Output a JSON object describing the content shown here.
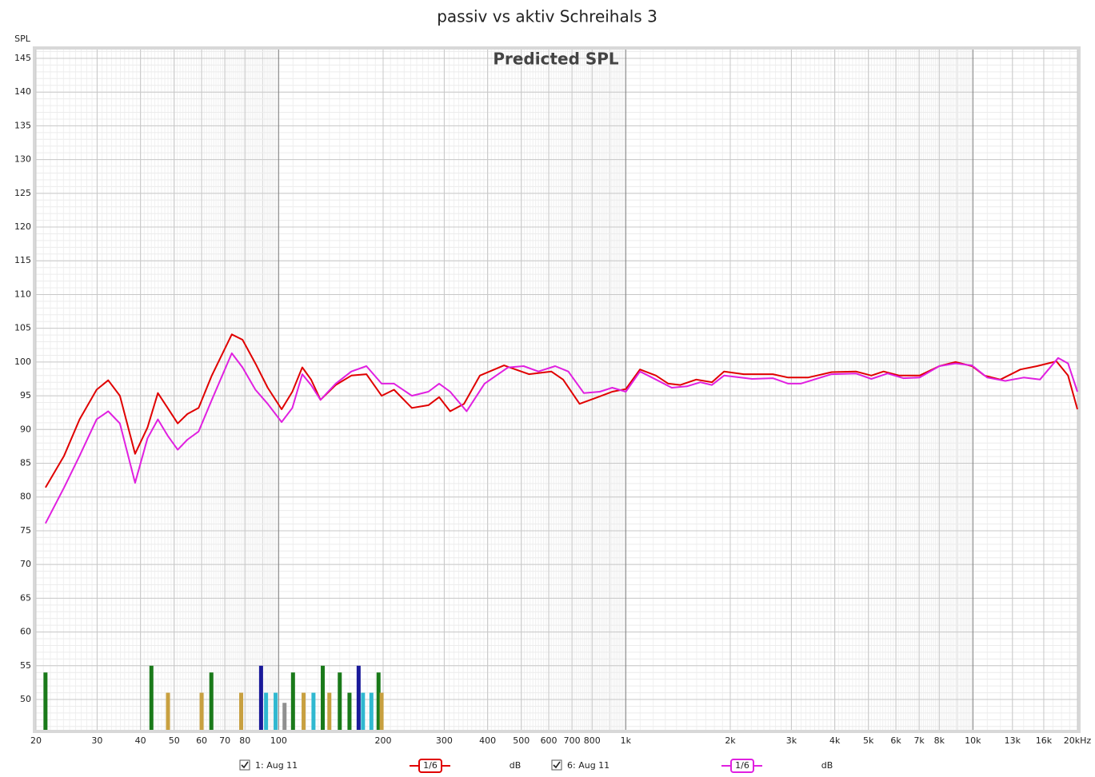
{
  "chart_data": {
    "type": "line",
    "title": "passiv vs aktiv Schreihals 3",
    "annotation": "Predicted SPL",
    "ylabel": "SPL",
    "xscale": "log",
    "grid": true,
    "xlim": [
      20,
      20000
    ],
    "ylim": [
      45.5,
      146.3
    ],
    "xticks": [
      20,
      30,
      40,
      50,
      60,
      70,
      80,
      100,
      200,
      300,
      400,
      500,
      600,
      {
        "value": 700,
        "label": "700"
      },
      800,
      {
        "value": 1000,
        "label": "1k"
      },
      {
        "value": 2000,
        "label": "2k"
      },
      {
        "value": 3000,
        "label": "3k"
      },
      {
        "value": 4000,
        "label": "4k"
      },
      {
        "value": 5000,
        "label": "5k"
      },
      {
        "value": 6000,
        "label": "6k"
      },
      {
        "value": 7000,
        "label": "7k"
      },
      {
        "value": 8000,
        "label": "8k"
      },
      {
        "value": 10000,
        "label": "10k"
      },
      {
        "value": 13000,
        "label": "13k"
      },
      {
        "value": 16000,
        "label": "16k"
      },
      {
        "value": 20000,
        "label": "20kHz"
      }
    ],
    "yticks": [
      50,
      55,
      60,
      65,
      70,
      75,
      80,
      85,
      90,
      95,
      100,
      105,
      110,
      115,
      120,
      125,
      130,
      135,
      140,
      145
    ],
    "series": [
      {
        "name": "1: Aug 11",
        "color": "#e00000",
        "smoothing": "1/6",
        "unit": "dB",
        "x": [
          21.3,
          24.1,
          26.7,
          29.9,
          32.3,
          34.9,
          38.6,
          41.9,
          44.9,
          47.9,
          51.2,
          54.6,
          58.8,
          64.2,
          73.3,
          78.7,
          85.7,
          93,
          102,
          109.5,
          117,
          124,
          132,
          146,
          162,
          179,
          198,
          215,
          242,
          270,
          290,
          312,
          342,
          380,
          446,
          526,
          610,
          660,
          736,
          822,
          914,
          1000,
          1099,
          1222,
          1326,
          1436,
          1596,
          1770,
          1919,
          2187,
          2652,
          2936,
          3350,
          3920,
          4600,
          5100,
          5530,
          6140,
          7020,
          8000,
          8910,
          9940,
          10800,
          12000,
          13700,
          15300,
          17400,
          18800,
          20000
        ],
        "values": [
          81.4,
          86.1,
          91.5,
          95.9,
          97.3,
          95,
          86.4,
          90.3,
          95.4,
          93.2,
          90.9,
          92.3,
          93.2,
          98,
          104.1,
          103.3,
          99.8,
          96.2,
          93,
          95.6,
          99.2,
          97.4,
          94.4,
          96.6,
          98,
          98.2,
          95,
          95.9,
          93.2,
          93.6,
          94.8,
          92.7,
          93.8,
          98,
          99.5,
          98.2,
          98.6,
          97.4,
          93.8,
          94.7,
          95.6,
          96,
          98.9,
          98,
          96.8,
          96.6,
          97.4,
          97,
          98.6,
          98.2,
          98.2,
          97.7,
          97.7,
          98.5,
          98.6,
          98,
          98.6,
          98,
          98,
          99.4,
          100,
          99.4,
          98,
          97.4,
          98.9,
          99.4,
          100.1,
          98,
          93
        ]
      },
      {
        "name": "6: Aug 11",
        "color": "#e020e0",
        "smoothing": "1/6",
        "unit": "dB",
        "x": [
          21.3,
          24.1,
          26.7,
          29.9,
          32.3,
          34.9,
          38.6,
          41.9,
          44.9,
          47.9,
          51.2,
          54.6,
          58.8,
          64.2,
          73.3,
          78.7,
          85.7,
          93,
          102,
          109.5,
          117,
          124,
          132,
          146,
          162,
          179,
          198,
          215,
          242,
          270,
          290,
          312,
          348,
          392,
          458,
          508,
          560,
          626,
          683,
          757,
          842,
          914,
          1000,
          1099,
          1222,
          1356,
          1500,
          1640,
          1770,
          1919,
          2310,
          2652,
          2936,
          3190,
          3920,
          4600,
          5100,
          5680,
          6300,
          7020,
          8000,
          8910,
          9940,
          11000,
          12400,
          14000,
          15600,
          17600,
          18800,
          20000
        ],
        "values": [
          76.1,
          81.4,
          86.1,
          91.5,
          92.7,
          90.9,
          82.1,
          88.7,
          91.5,
          89.1,
          87,
          88.5,
          89.7,
          94.4,
          101.3,
          99.2,
          95.9,
          93.8,
          91.1,
          93.2,
          98.2,
          96.6,
          94.4,
          96.8,
          98.6,
          99.4,
          96.8,
          96.8,
          95,
          95.6,
          96.8,
          95.6,
          92.7,
          96.8,
          99.2,
          99.4,
          98.6,
          99.4,
          98.6,
          95.4,
          95.6,
          96.2,
          95.6,
          98.6,
          97.4,
          96.2,
          96.4,
          97,
          96.6,
          98,
          97.5,
          97.6,
          96.8,
          96.8,
          98.2,
          98.3,
          97.5,
          98.3,
          97.6,
          97.7,
          99.4,
          99.8,
          99.5,
          97.7,
          97.2,
          97.7,
          97.4,
          100.6,
          99.8,
          95.6
        ]
      }
    ],
    "bars": {
      "x": [
        21.3,
        43,
        48,
        60,
        64,
        78,
        89,
        92,
        98,
        104,
        110,
        118,
        126,
        134,
        140,
        150,
        160,
        170,
        175,
        185,
        194,
        198
      ],
      "values": [
        54,
        55,
        51,
        51,
        54,
        51,
        55,
        51,
        51,
        49.5,
        54,
        51,
        51,
        55,
        51,
        54,
        51,
        55,
        51,
        51,
        54,
        51
      ],
      "colors": [
        "#1a7a1a",
        "#1a7a1a",
        "#c8a040",
        "#c8a040",
        "#1a7a1a",
        "#c8a040",
        "#1a1a9a",
        "#30b8d0",
        "#30b8d0",
        "#909090",
        "#1a7a1a",
        "#c8a040",
        "#30b8d0",
        "#1a7a1a",
        "#c8a040",
        "#1a7a1a",
        "#1a7a1a",
        "#1a1a9a",
        "#30b8d0",
        "#30b8d0",
        "#1a7a1a",
        "#c8a040"
      ]
    }
  }
}
